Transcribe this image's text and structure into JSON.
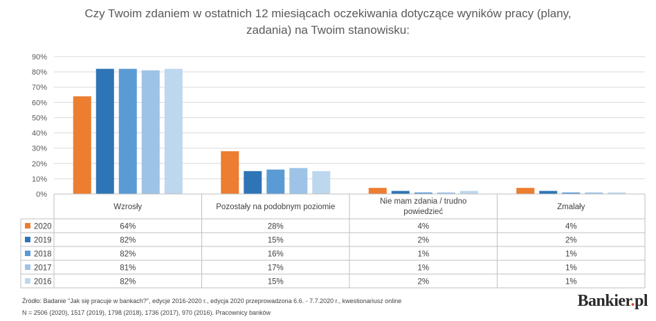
{
  "title_line1": "Czy Twoim zdaniem w ostatnich 12 miesiącach oczekiwania dotyczące wyników pracy (plany,",
  "title_line2": "zadania) na Twoim stanowisku:",
  "chart_data": {
    "type": "bar",
    "title": "Czy Twoim zdaniem w ostatnich 12 miesiącach oczekiwania dotyczące wyników pracy (plany, zadania) na Twoim stanowisku:",
    "categories": [
      "Wzrosły",
      "Pozostały na podobnym poziomie",
      "Nie mam zdania / trudno powiedzieć",
      "Zmalały"
    ],
    "category_lines": [
      [
        "Wzrosły"
      ],
      [
        "Pozostały na podobnym poziomie"
      ],
      [
        "Nie mam zdania / trudno",
        "powiedzieć"
      ],
      [
        "Zmalały"
      ]
    ],
    "series": [
      {
        "name": "2020",
        "color": "#ed7d31",
        "values": [
          64,
          28,
          4,
          4
        ],
        "labels": [
          "64%",
          "28%",
          "4%",
          "4%"
        ]
      },
      {
        "name": "2019",
        "color": "#2e75b6",
        "values": [
          82,
          15,
          2,
          2
        ],
        "labels": [
          "82%",
          "15%",
          "2%",
          "2%"
        ]
      },
      {
        "name": "2018",
        "color": "#5b9bd5",
        "values": [
          82,
          16,
          1,
          1
        ],
        "labels": [
          "82%",
          "16%",
          "1%",
          "1%"
        ]
      },
      {
        "name": "2017",
        "color": "#9dc3e6",
        "values": [
          81,
          17,
          1,
          1
        ],
        "labels": [
          "81%",
          "17%",
          "1%",
          "1%"
        ]
      },
      {
        "name": "2016",
        "color": "#bdd7ee",
        "values": [
          82,
          15,
          2,
          1
        ],
        "labels": [
          "82%",
          "15%",
          "2%",
          "1%"
        ]
      }
    ],
    "ylim": [
      0,
      90
    ],
    "y_ticks": [
      "0%",
      "10%",
      "20%",
      "30%",
      "40%",
      "50%",
      "60%",
      "70%",
      "80%",
      "90%"
    ],
    "grid": true,
    "legend": "data table below chart"
  },
  "footer": {
    "source": "Źródło: Badanie \"Jak się pracuje w bankach?\", edycje 2016-2020 r., edycja 2020 przeprowadzona 6.6. - 7.7.2020 r., kwestionariusz online",
    "n": "N = 2506 (2020), 1517 (2019), 1798 (2018), 1736 (2017), 970 (2016). Pracownicy banków"
  },
  "brand": {
    "name": "Bankier",
    "dot": ".",
    "suffix": "pl"
  }
}
